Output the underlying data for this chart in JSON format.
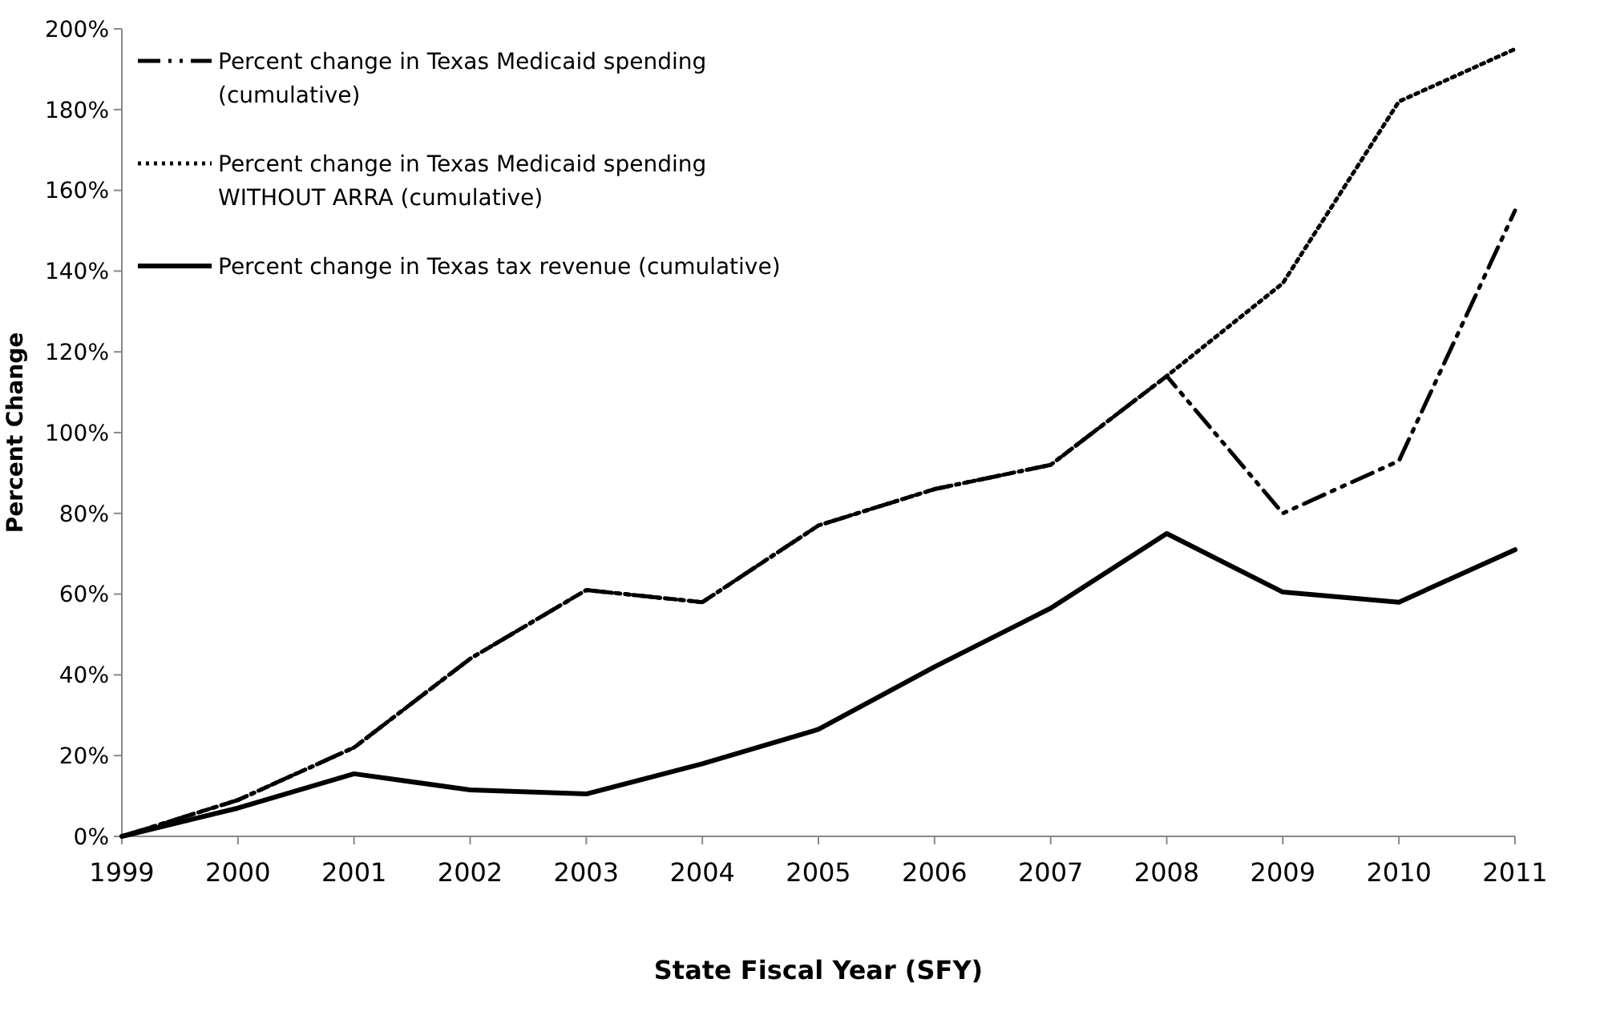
{
  "chart_data": {
    "type": "line",
    "xlabel": "State Fiscal Year (SFY)",
    "ylabel": "Percent Change",
    "x": [
      1999,
      2000,
      2001,
      2002,
      2003,
      2004,
      2005,
      2006,
      2007,
      2008,
      2009,
      2010,
      2011
    ],
    "xlim": [
      1999,
      2011
    ],
    "xticks": [
      1999,
      2000,
      2001,
      2002,
      2003,
      2004,
      2005,
      2006,
      2007,
      2008,
      2009,
      2010,
      2011
    ],
    "ylim": [
      0,
      200
    ],
    "yticks": [
      {
        "value": 0,
        "label": "0%"
      },
      {
        "value": 20,
        "label": "20%"
      },
      {
        "value": 40,
        "label": "40%"
      },
      {
        "value": 60,
        "label": "60%"
      },
      {
        "value": 80,
        "label": "80%"
      },
      {
        "value": 100,
        "label": "100%"
      },
      {
        "value": 120,
        "label": "120%"
      },
      {
        "value": 140,
        "label": "140%"
      },
      {
        "value": 160,
        "label": "160%"
      },
      {
        "value": 180,
        "label": "180%"
      },
      {
        "value": 200,
        "label": "200%"
      }
    ],
    "grid": false,
    "legend": "top left",
    "marker": "none",
    "series": [
      {
        "name": "Percent change in Texas Medicaid spending\n(cumulative)",
        "color": "#000000",
        "line_style": "dashed",
        "values": [
          0,
          9,
          22,
          44,
          61,
          58,
          77,
          86,
          92,
          114,
          80,
          93,
          155
        ]
      },
      {
        "name": "Percent change in Texas Medicaid spending\nWITHOUT ARRA (cumulative)",
        "color": "#000000",
        "line_style": "dotted",
        "values": [
          0,
          9,
          22,
          44,
          61,
          58,
          77,
          86,
          92,
          114,
          137,
          182,
          195
        ]
      },
      {
        "name": "Percent change in Texas tax revenue (cumulative)",
        "color": "#000000",
        "line_style": "solid",
        "values": [
          0,
          7,
          15.5,
          11.5,
          10.5,
          18,
          26.5,
          42,
          56.5,
          75,
          60.5,
          58,
          71
        ]
      }
    ]
  }
}
